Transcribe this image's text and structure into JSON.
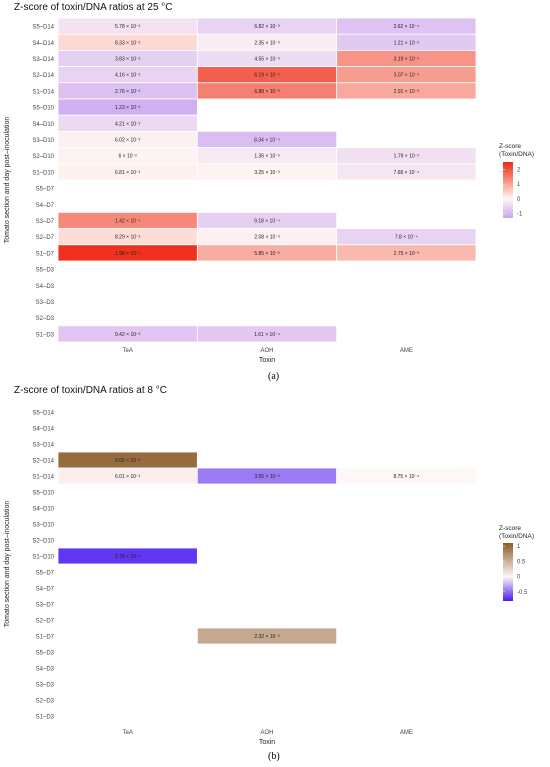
{
  "figure": {
    "captions": [
      "(a)",
      "(b)"
    ]
  },
  "chart_data": [
    {
      "type": "heatmap",
      "panel_label": "(a)",
      "title": "Z-score of toxin/DNA ratios at 25 °C",
      "xlabel": "Toxin",
      "ylabel": "Tomato section and day post–inoculation",
      "x_categories": [
        "TeA",
        "AOH",
        "AME"
      ],
      "y_categories": [
        "S5–D14",
        "S4–D14",
        "S3–D14",
        "S2–D14",
        "S1–D14",
        "S5–D10",
        "S4–D10",
        "S3–D10",
        "S2–D10",
        "S1–D10",
        "S5–D7",
        "S4–D7",
        "S3–D7",
        "S2–D7",
        "S1–D7",
        "S5–D3",
        "S4–D3",
        "S3–D3",
        "S2–D3",
        "S1–D3"
      ],
      "legend": {
        "title": "Z-score\n(Toxin/DNA)",
        "ticks": [
          2,
          1,
          0,
          -1
        ],
        "range": [
          -1.3,
          2.5
        ],
        "colors": {
          "low": "#c9a3f2",
          "mid": "#fff6f2",
          "high": "#ee2a14"
        },
        "placement": "right"
      },
      "cells": [
        {
          "y": "S5–D14",
          "x": "TeA",
          "label": "5.78 × 10⁻²",
          "z": -0.3
        },
        {
          "y": "S5–D14",
          "x": "AOH",
          "label": "6.82 × 10⁻³",
          "z": -0.55
        },
        {
          "y": "S5–D14",
          "x": "AME",
          "label": "3.62 × 10⁻⁴",
          "z": -0.8
        },
        {
          "y": "S4–D14",
          "x": "TeA",
          "label": "8.33 × 10⁻²",
          "z": 0.35
        },
        {
          "y": "S4–D14",
          "x": "AOH",
          "label": "2.35 × 10⁻³",
          "z": -0.15
        },
        {
          "y": "S4–D14",
          "x": "AME",
          "label": "1.21 × 10⁻³",
          "z": -0.7
        },
        {
          "y": "S3–D14",
          "x": "TeA",
          "label": "3.83 × 10⁻²",
          "z": -0.6
        },
        {
          "y": "S3–D14",
          "x": "AOH",
          "label": "4.55 × 10⁻³",
          "z": -0.4
        },
        {
          "y": "S3–D14",
          "x": "AME",
          "label": "3.19 × 10⁻³",
          "z": 1.2
        },
        {
          "y": "S2–D14",
          "x": "TeA",
          "label": "4.16 × 10⁻²",
          "z": -0.55
        },
        {
          "y": "S2–D14",
          "x": "AOH",
          "label": "6.19 × 10⁻²",
          "z": 1.85
        },
        {
          "y": "S2–D14",
          "x": "AME",
          "label": "3.07 × 10⁻³",
          "z": 1.1
        },
        {
          "y": "S1–D14",
          "x": "TeA",
          "label": "2.76 × 10⁻²",
          "z": -0.85
        },
        {
          "y": "S1–D14",
          "x": "AOH",
          "label": "6.88 × 10⁻³",
          "z": 1.45
        },
        {
          "y": "S1–D14",
          "x": "AME",
          "label": "2.91 × 10⁻³",
          "z": 0.95
        },
        {
          "y": "S5–D10",
          "x": "TeA",
          "label": "1.23 × 10⁻²",
          "z": -1.1
        },
        {
          "y": "S4–D10",
          "x": "TeA",
          "label": "4.21 × 10⁻²",
          "z": -0.45
        },
        {
          "y": "S3–D10",
          "x": "TeA",
          "label": "6.02 × 10⁻²",
          "z": -0.1
        },
        {
          "y": "S3–D10",
          "x": "AOH",
          "label": "8.34 × 10⁻⁴",
          "z": -0.9
        },
        {
          "y": "S2–D10",
          "x": "TeA",
          "label": "6 × 10⁻²",
          "z": -0.05
        },
        {
          "y": "S2–D10",
          "x": "AOH",
          "label": "1.36 × 10⁻³",
          "z": -0.2
        },
        {
          "y": "S2–D10",
          "x": "AME",
          "label": "1.79 × 10⁻³",
          "z": -0.35
        },
        {
          "y": "S1–D10",
          "x": "TeA",
          "label": "6.81 × 10⁻²",
          "z": 0.05
        },
        {
          "y": "S1–D10",
          "x": "AOH",
          "label": "3.25 × 10⁻³",
          "z": -0.05
        },
        {
          "y": "S1–D10",
          "x": "AME",
          "label": "7.68 × 10⁻⁴",
          "z": -0.25
        },
        {
          "y": "S3–D7",
          "x": "TeA",
          "label": "1.42 × 10⁻¹",
          "z": 1.35
        },
        {
          "y": "S3–D7",
          "x": "AOH",
          "label": "9.18 × 10⁻⁴",
          "z": -0.6
        },
        {
          "y": "S2–D7",
          "x": "TeA",
          "label": "8.29 × 10⁻²",
          "z": 0.3
        },
        {
          "y": "S2–D7",
          "x": "AOH",
          "label": "2.08 × 10⁻³",
          "z": -0.1
        },
        {
          "y": "S2–D7",
          "x": "AME",
          "label": "7.8 × 10⁻⁴",
          "z": -0.55
        },
        {
          "y": "S1–D7",
          "x": "TeA",
          "label": "1.98 × 10⁻¹",
          "z": 2.4
        },
        {
          "y": "S1–D7",
          "x": "AOH",
          "label": "5.85 × 10⁻³",
          "z": 0.9
        },
        {
          "y": "S1–D7",
          "x": "AME",
          "label": "2.75 × 10⁻³",
          "z": 0.75
        },
        {
          "y": "S1–D3",
          "x": "TeA",
          "label": "9.42 × 10⁻³",
          "z": -0.75
        },
        {
          "y": "S1–D3",
          "x": "AOH",
          "label": "1.61 × 10⁻⁴",
          "z": -0.7
        }
      ]
    },
    {
      "type": "heatmap",
      "panel_label": "(b)",
      "title": "Z-score of toxin/DNA ratios at 8 °C",
      "xlabel": "Toxin",
      "ylabel": "Tomato section and day post–inoculation",
      "x_categories": [
        "TeA",
        "AOH",
        "AME"
      ],
      "y_categories": [
        "S5–D14",
        "S4–D14",
        "S3–D14",
        "S2–D14",
        "S1–D14",
        "S5–D10",
        "S4–D10",
        "S3–D10",
        "S2–D10",
        "S1–D10",
        "S5–D7",
        "S4–D7",
        "S3–D7",
        "S2–D7",
        "S1–D7",
        "S5–D3",
        "S4–D3",
        "S3–D3",
        "S2–D3",
        "S1–D3"
      ],
      "legend": {
        "title": "Z-score\n(Toxin/DNA)",
        "ticks": [
          1.0,
          0.5,
          0.0,
          -0.5
        ],
        "range": [
          -0.8,
          1.1
        ],
        "colors": {
          "low": "#4a1bf0",
          "mid": "#fff6f6",
          "high": "#8a5a2a"
        },
        "placement": "right"
      },
      "cells": [
        {
          "y": "S2–D14",
          "x": "TeA",
          "label": "9.05 × 10⁻²",
          "z": 0.98
        },
        {
          "y": "S1–D14",
          "x": "TeA",
          "label": "6.01 × 10⁻²",
          "z": 0.05
        },
        {
          "y": "S1–D14",
          "x": "AOH",
          "label": "3.55 × 10⁻³",
          "z": -0.45
        },
        {
          "y": "S1–D14",
          "x": "AME",
          "label": "8.75 × 10⁻⁴",
          "z": 0.0
        },
        {
          "y": "S1–D10",
          "x": "TeA",
          "label": "2.75 × 10⁻²",
          "z": -0.7
        },
        {
          "y": "S1–D7",
          "x": "AOH",
          "label": "2.32 × 10⁻³",
          "z": 0.55
        }
      ]
    }
  ]
}
